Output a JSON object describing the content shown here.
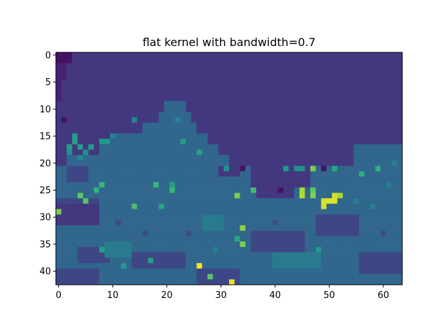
{
  "chart_data": {
    "type": "heatmap",
    "title": "flat kernel with bandwidth=0.7",
    "xlabel": "",
    "ylabel": "",
    "colormap": "viridis",
    "value_range": [
      0,
      6
    ],
    "grid": false,
    "y_origin": "top",
    "xlim": [
      -0.5,
      63.5
    ],
    "ylim": [
      42.5,
      -0.5
    ],
    "x_ticks": [
      0,
      10,
      20,
      30,
      40,
      50,
      60
    ],
    "y_ticks": [
      0,
      5,
      10,
      15,
      20,
      25,
      30,
      35,
      40
    ],
    "n_cols": 64,
    "n_rows": 43,
    "background_value": 1,
    "regions": [
      {
        "value": 0.3,
        "rects": [
          [
            0,
            0,
            3,
            2
          ]
        ]
      },
      {
        "value": 0.6,
        "rects": [
          [
            0,
            2,
            2,
            3
          ],
          [
            0,
            5,
            1,
            4
          ]
        ]
      },
      {
        "value": 2.0,
        "rects": [
          [
            20,
            9,
            4,
            2
          ],
          [
            19,
            11,
            6,
            2
          ],
          [
            16,
            13,
            10,
            2
          ],
          [
            10,
            15,
            18,
            2
          ],
          [
            8,
            17,
            22,
            2
          ],
          [
            2,
            19,
            30,
            2
          ],
          [
            0,
            21,
            36,
            4
          ],
          [
            0,
            25,
            64,
            18
          ],
          [
            47,
            21,
            17,
            4
          ],
          [
            55,
            17,
            9,
            4
          ]
        ]
      },
      {
        "value": 1.3,
        "rects": [
          [
            0,
            27,
            8,
            5
          ],
          [
            36,
            33,
            10,
            4
          ],
          [
            14,
            37,
            10,
            3
          ],
          [
            26,
            40,
            8,
            3
          ],
          [
            4,
            36,
            6,
            3
          ],
          [
            48,
            30,
            8,
            4
          ],
          [
            56,
            37,
            8,
            4
          ],
          [
            0,
            40,
            8,
            3
          ],
          [
            2,
            21,
            4,
            3
          ]
        ]
      },
      {
        "value": 1.0,
        "rects": [
          [
            0,
            28,
            8,
            4
          ],
          [
            37,
            25,
            7,
            2
          ],
          [
            30,
            21,
            4,
            2
          ]
        ]
      },
      {
        "value": 2.5,
        "rects": [
          [
            9,
            35,
            5,
            3
          ],
          [
            40,
            37,
            9,
            3
          ],
          [
            27,
            30,
            4,
            3
          ]
        ]
      }
    ],
    "cells": [
      {
        "x": 1,
        "y": 12,
        "value": 0.3
      },
      {
        "x": 2,
        "y": 17,
        "value": 3.4
      },
      {
        "x": 3,
        "y": 16,
        "value": 3.4
      },
      {
        "x": 3,
        "y": 15,
        "value": 3.4
      },
      {
        "x": 4,
        "y": 17,
        "value": 3.4
      },
      {
        "x": 2,
        "y": 18,
        "value": 3.0
      },
      {
        "x": 6,
        "y": 17,
        "value": 3.4
      },
      {
        "x": 5,
        "y": 18,
        "value": 3.0
      },
      {
        "x": 8,
        "y": 16,
        "value": 3.2
      },
      {
        "x": 9,
        "y": 16,
        "value": 3.2
      },
      {
        "x": 4,
        "y": 19,
        "value": 2.8
      },
      {
        "x": 23,
        "y": 16,
        "value": 3.3
      },
      {
        "x": 26,
        "y": 18,
        "value": 3.5
      },
      {
        "x": 10,
        "y": 15,
        "value": 2.7
      },
      {
        "x": 14,
        "y": 12,
        "value": 2.7
      },
      {
        "x": 22,
        "y": 12,
        "value": 2.7
      },
      {
        "x": 31,
        "y": 21,
        "value": 3.0
      },
      {
        "x": 34,
        "y": 21,
        "value": 0.3
      },
      {
        "x": 42,
        "y": 21,
        "value": 3.2
      },
      {
        "x": 44,
        "y": 21,
        "value": 3.0
      },
      {
        "x": 45,
        "y": 21,
        "value": 3.0
      },
      {
        "x": 47,
        "y": 21,
        "value": 4.8
      },
      {
        "x": 49,
        "y": 21,
        "value": 0.3
      },
      {
        "x": 51,
        "y": 21,
        "value": 3.6
      },
      {
        "x": 56,
        "y": 22,
        "value": 3.8
      },
      {
        "x": 59,
        "y": 21,
        "value": 3.8
      },
      {
        "x": 8,
        "y": 24,
        "value": 4.0
      },
      {
        "x": 7,
        "y": 25,
        "value": 3.9
      },
      {
        "x": 18,
        "y": 24,
        "value": 4.0
      },
      {
        "x": 21,
        "y": 24,
        "value": 3.4
      },
      {
        "x": 21,
        "y": 25,
        "value": 4.0
      },
      {
        "x": 4,
        "y": 26,
        "value": 4.5
      },
      {
        "x": 5,
        "y": 27,
        "value": 4.4
      },
      {
        "x": 14,
        "y": 28,
        "value": 4.2
      },
      {
        "x": 19,
        "y": 28,
        "value": 3.6
      },
      {
        "x": 0,
        "y": 29,
        "value": 4.8
      },
      {
        "x": 33,
        "y": 26,
        "value": 4.8
      },
      {
        "x": 36,
        "y": 25,
        "value": 4.2
      },
      {
        "x": 41,
        "y": 25,
        "value": 0.3
      },
      {
        "x": 45,
        "y": 25,
        "value": 5.2
      },
      {
        "x": 45,
        "y": 26,
        "value": 5.3
      },
      {
        "x": 47,
        "y": 25,
        "value": 4.5
      },
      {
        "x": 47,
        "y": 26,
        "value": 4.8
      },
      {
        "x": 49,
        "y": 27,
        "value": 5.6
      },
      {
        "x": 49,
        "y": 28,
        "value": 5.6
      },
      {
        "x": 50,
        "y": 27,
        "value": 5.7
      },
      {
        "x": 51,
        "y": 26,
        "value": 5.6
      },
      {
        "x": 51,
        "y": 27,
        "value": 5.7
      },
      {
        "x": 52,
        "y": 26,
        "value": 5.2
      },
      {
        "x": 34,
        "y": 32,
        "value": 5.0
      },
      {
        "x": 33,
        "y": 34,
        "value": 3.6
      },
      {
        "x": 34,
        "y": 35,
        "value": 4.8
      },
      {
        "x": 8,
        "y": 36,
        "value": 3.4
      },
      {
        "x": 48,
        "y": 36,
        "value": 3.2
      },
      {
        "x": 17,
        "y": 38,
        "value": 3.4
      },
      {
        "x": 12,
        "y": 39,
        "value": 3.2
      },
      {
        "x": 26,
        "y": 39,
        "value": 6.0
      },
      {
        "x": 28,
        "y": 41,
        "value": 4.4
      },
      {
        "x": 32,
        "y": 42,
        "value": 5.8
      },
      {
        "x": 55,
        "y": 27,
        "value": 2.6
      },
      {
        "x": 58,
        "y": 28,
        "value": 2.6
      },
      {
        "x": 61,
        "y": 24,
        "value": 2.6
      },
      {
        "x": 62,
        "y": 20,
        "value": 2.6
      },
      {
        "x": 16,
        "y": 33,
        "value": 1.4
      },
      {
        "x": 24,
        "y": 33,
        "value": 1.4
      },
      {
        "x": 11,
        "y": 31,
        "value": 1.4
      },
      {
        "x": 29,
        "y": 36,
        "value": 2.6
      },
      {
        "x": 40,
        "y": 31,
        "value": 1.4
      },
      {
        "x": 60,
        "y": 33,
        "value": 1.4
      }
    ]
  }
}
